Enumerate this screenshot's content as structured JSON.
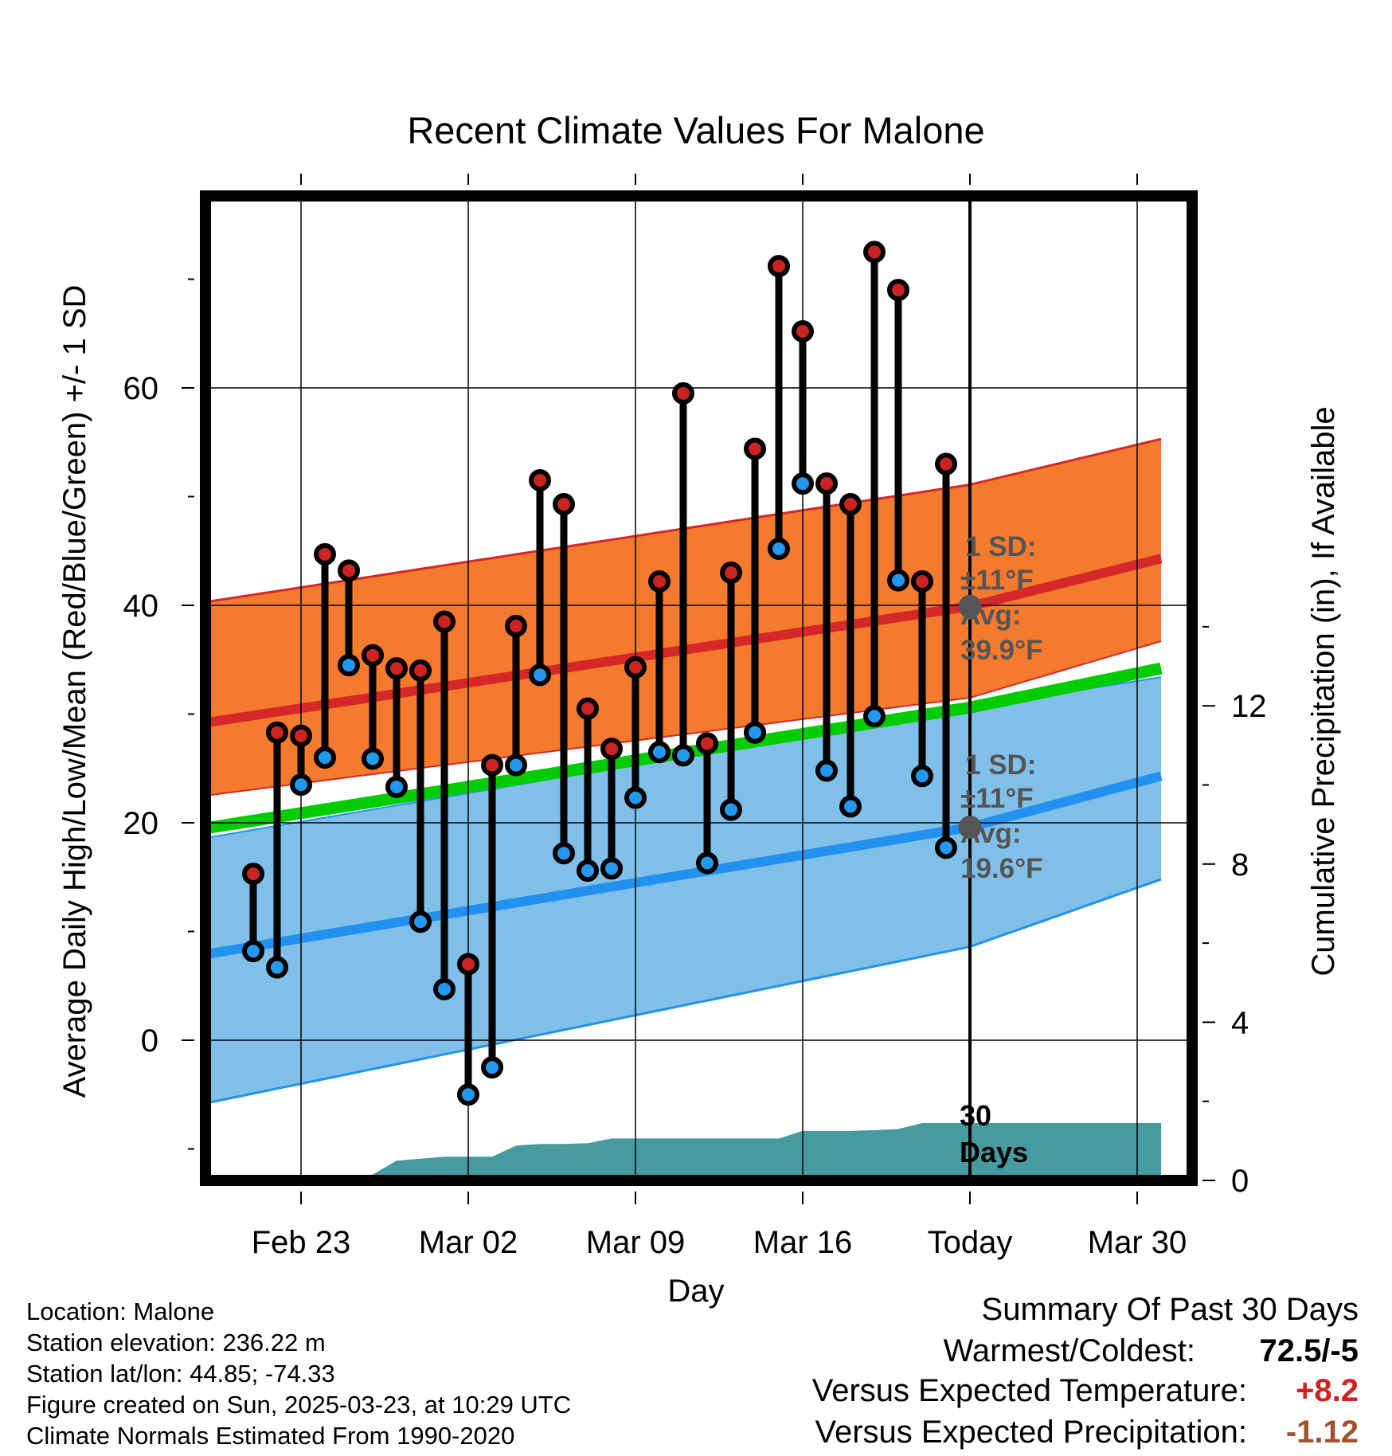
{
  "chart_data": {
    "type": "line",
    "title": "Recent Climate Values For Malone",
    "xlabel": "Day",
    "ylabel": "Average Daily High/Low/Mean (Red/Blue/Green) +/- 1 SD",
    "y2label": "Cumulative Precipitation (in), If Available",
    "x_ticks": [
      {
        "date": "2025-02-23",
        "label": "Feb 23"
      },
      {
        "date": "2025-03-02",
        "label": "Mar 02"
      },
      {
        "date": "2025-03-09",
        "label": "Mar 09"
      },
      {
        "date": "2025-03-16",
        "label": "Mar 16"
      },
      {
        "date": "2025-03-23",
        "label": "Today"
      },
      {
        "date": "2025-03-30",
        "label": "Mar 30"
      }
    ],
    "xlim": [
      "2025-02-19",
      "2025-03-31"
    ],
    "ylim": [
      -12.5,
      77
    ],
    "y_ticks": [
      0,
      20,
      40,
      60
    ],
    "y2lim": [
      0,
      26.5
    ],
    "y2_ticks": [
      0,
      4,
      8,
      12
    ],
    "grid": true,
    "today": "2025-03-23",
    "colors": {
      "high_band": "#f47a2d",
      "high_line": "#d62828",
      "low_band": "#80c0e8",
      "low_line": "#2291f0",
      "mean_line": "#00cc00",
      "overlap": "#9b1212",
      "precip": "#459b9f",
      "high_marker": "#cc2222",
      "low_marker": "#2299ee",
      "summary_temp": "#cc2222",
      "summary_precip": "#a0522d"
    },
    "normals": {
      "dates": [
        "2025-02-19",
        "2025-03-23",
        "2025-03-31"
      ],
      "high_avg": [
        29.2,
        39.9,
        44.3
      ],
      "high_sd_upper": [
        40.3,
        51.1,
        55.3
      ],
      "high_sd_lower": [
        22.5,
        31.5,
        36.7
      ],
      "low_avg": [
        7.9,
        19.6,
        24.3
      ],
      "low_sd_upper": [
        18.6,
        30.6,
        33.4
      ],
      "low_sd_lower": [
        -5.8,
        8.6,
        14.8
      ],
      "mean_avg": [
        19.5,
        30.6,
        34.2
      ]
    },
    "series": [
      {
        "name": "high",
        "dates": [
          "2025-02-21",
          "2025-02-22",
          "2025-02-23",
          "2025-02-24",
          "2025-02-25",
          "2025-02-26",
          "2025-02-27",
          "2025-02-28",
          "2025-03-01",
          "2025-03-02",
          "2025-03-03",
          "2025-03-04",
          "2025-03-05",
          "2025-03-06",
          "2025-03-07",
          "2025-03-08",
          "2025-03-09",
          "2025-03-10",
          "2025-03-11",
          "2025-03-12",
          "2025-03-13",
          "2025-03-14",
          "2025-03-15",
          "2025-03-16",
          "2025-03-17",
          "2025-03-18",
          "2025-03-19",
          "2025-03-20",
          "2025-03-21",
          "2025-03-22"
        ],
        "values": [
          15.3,
          28.3,
          28.0,
          44.7,
          43.2,
          35.4,
          34.2,
          34.0,
          38.5,
          7.0,
          25.3,
          38.1,
          51.5,
          49.3,
          30.5,
          26.8,
          34.3,
          42.2,
          59.5,
          27.3,
          43.0,
          54.4,
          71.2,
          65.2,
          51.2,
          49.3,
          72.5,
          69.0,
          42.2,
          53.0
        ]
      },
      {
        "name": "low",
        "dates": [
          "2025-02-21",
          "2025-02-22",
          "2025-02-23",
          "2025-02-24",
          "2025-02-25",
          "2025-02-26",
          "2025-02-27",
          "2025-02-28",
          "2025-03-01",
          "2025-03-02",
          "2025-03-03",
          "2025-03-04",
          "2025-03-05",
          "2025-03-06",
          "2025-03-07",
          "2025-03-08",
          "2025-03-09",
          "2025-03-10",
          "2025-03-11",
          "2025-03-12",
          "2025-03-13",
          "2025-03-14",
          "2025-03-15",
          "2025-03-16",
          "2025-03-17",
          "2025-03-18",
          "2025-03-19",
          "2025-03-20",
          "2025-03-21",
          "2025-03-22"
        ],
        "values": [
          8.2,
          6.7,
          23.5,
          26.0,
          34.5,
          25.9,
          23.3,
          10.9,
          4.7,
          -5.0,
          -2.5,
          25.3,
          33.6,
          17.2,
          15.6,
          15.8,
          22.3,
          26.5,
          26.2,
          16.3,
          21.2,
          28.3,
          45.2,
          51.2,
          24.8,
          21.5,
          29.8,
          42.3,
          24.3,
          17.7
        ]
      }
    ],
    "precipitation": {
      "dates": [
        "2025-02-23",
        "2025-02-24",
        "2025-02-25",
        "2025-02-26",
        "2025-02-27",
        "2025-02-28",
        "2025-03-01",
        "2025-03-02",
        "2025-03-03",
        "2025-03-04",
        "2025-03-05",
        "2025-03-06",
        "2025-03-07",
        "2025-03-08",
        "2025-03-09",
        "2025-03-10",
        "2025-03-11",
        "2025-03-12",
        "2025-03-13",
        "2025-03-14",
        "2025-03-15",
        "2025-03-16",
        "2025-03-17",
        "2025-03-18",
        "2025-03-19",
        "2025-03-20",
        "2025-03-21",
        "2025-03-22",
        "2025-03-23",
        "2025-03-31"
      ],
      "values": [
        0,
        0,
        0.05,
        0.15,
        0.5,
        0.55,
        0.6,
        0.6,
        0.6,
        0.88,
        0.92,
        0.92,
        0.94,
        1.06,
        1.06,
        1.06,
        1.06,
        1.06,
        1.06,
        1.06,
        1.06,
        1.25,
        1.25,
        1.25,
        1.27,
        1.3,
        1.45,
        1.45,
        1.45,
        1.45
      ]
    },
    "annotations": {
      "high": {
        "label": "1 SD:",
        "sd": "±11°F",
        "avg_label": "Avg:",
        "avg": "39.9°F",
        "avg_value": 39.9
      },
      "low": {
        "label": "1 SD:",
        "sd": "±11°F",
        "avg_label": "Avg:",
        "avg": "19.6°F",
        "avg_value": 19.6
      },
      "days": "30\nDays"
    }
  },
  "metadata_lines": [
    "Location: Malone",
    "Station elevation: 236.22 m",
    "Station lat/lon: 44.85; -74.33",
    "Figure created on Sun, 2025-03-23, at 10:29 UTC",
    "Climate Normals Estimated From 1990-2020"
  ],
  "summary": {
    "heading": "Summary Of Past 30 Days",
    "warmest_label": "Warmest/Coldest:",
    "warmest_value": "72.5/-5",
    "temp_label": "Versus Expected Temperature:",
    "temp_value": "+8.2",
    "precip_label": "Versus Expected Precipitation:",
    "precip_value": "-1.12"
  }
}
